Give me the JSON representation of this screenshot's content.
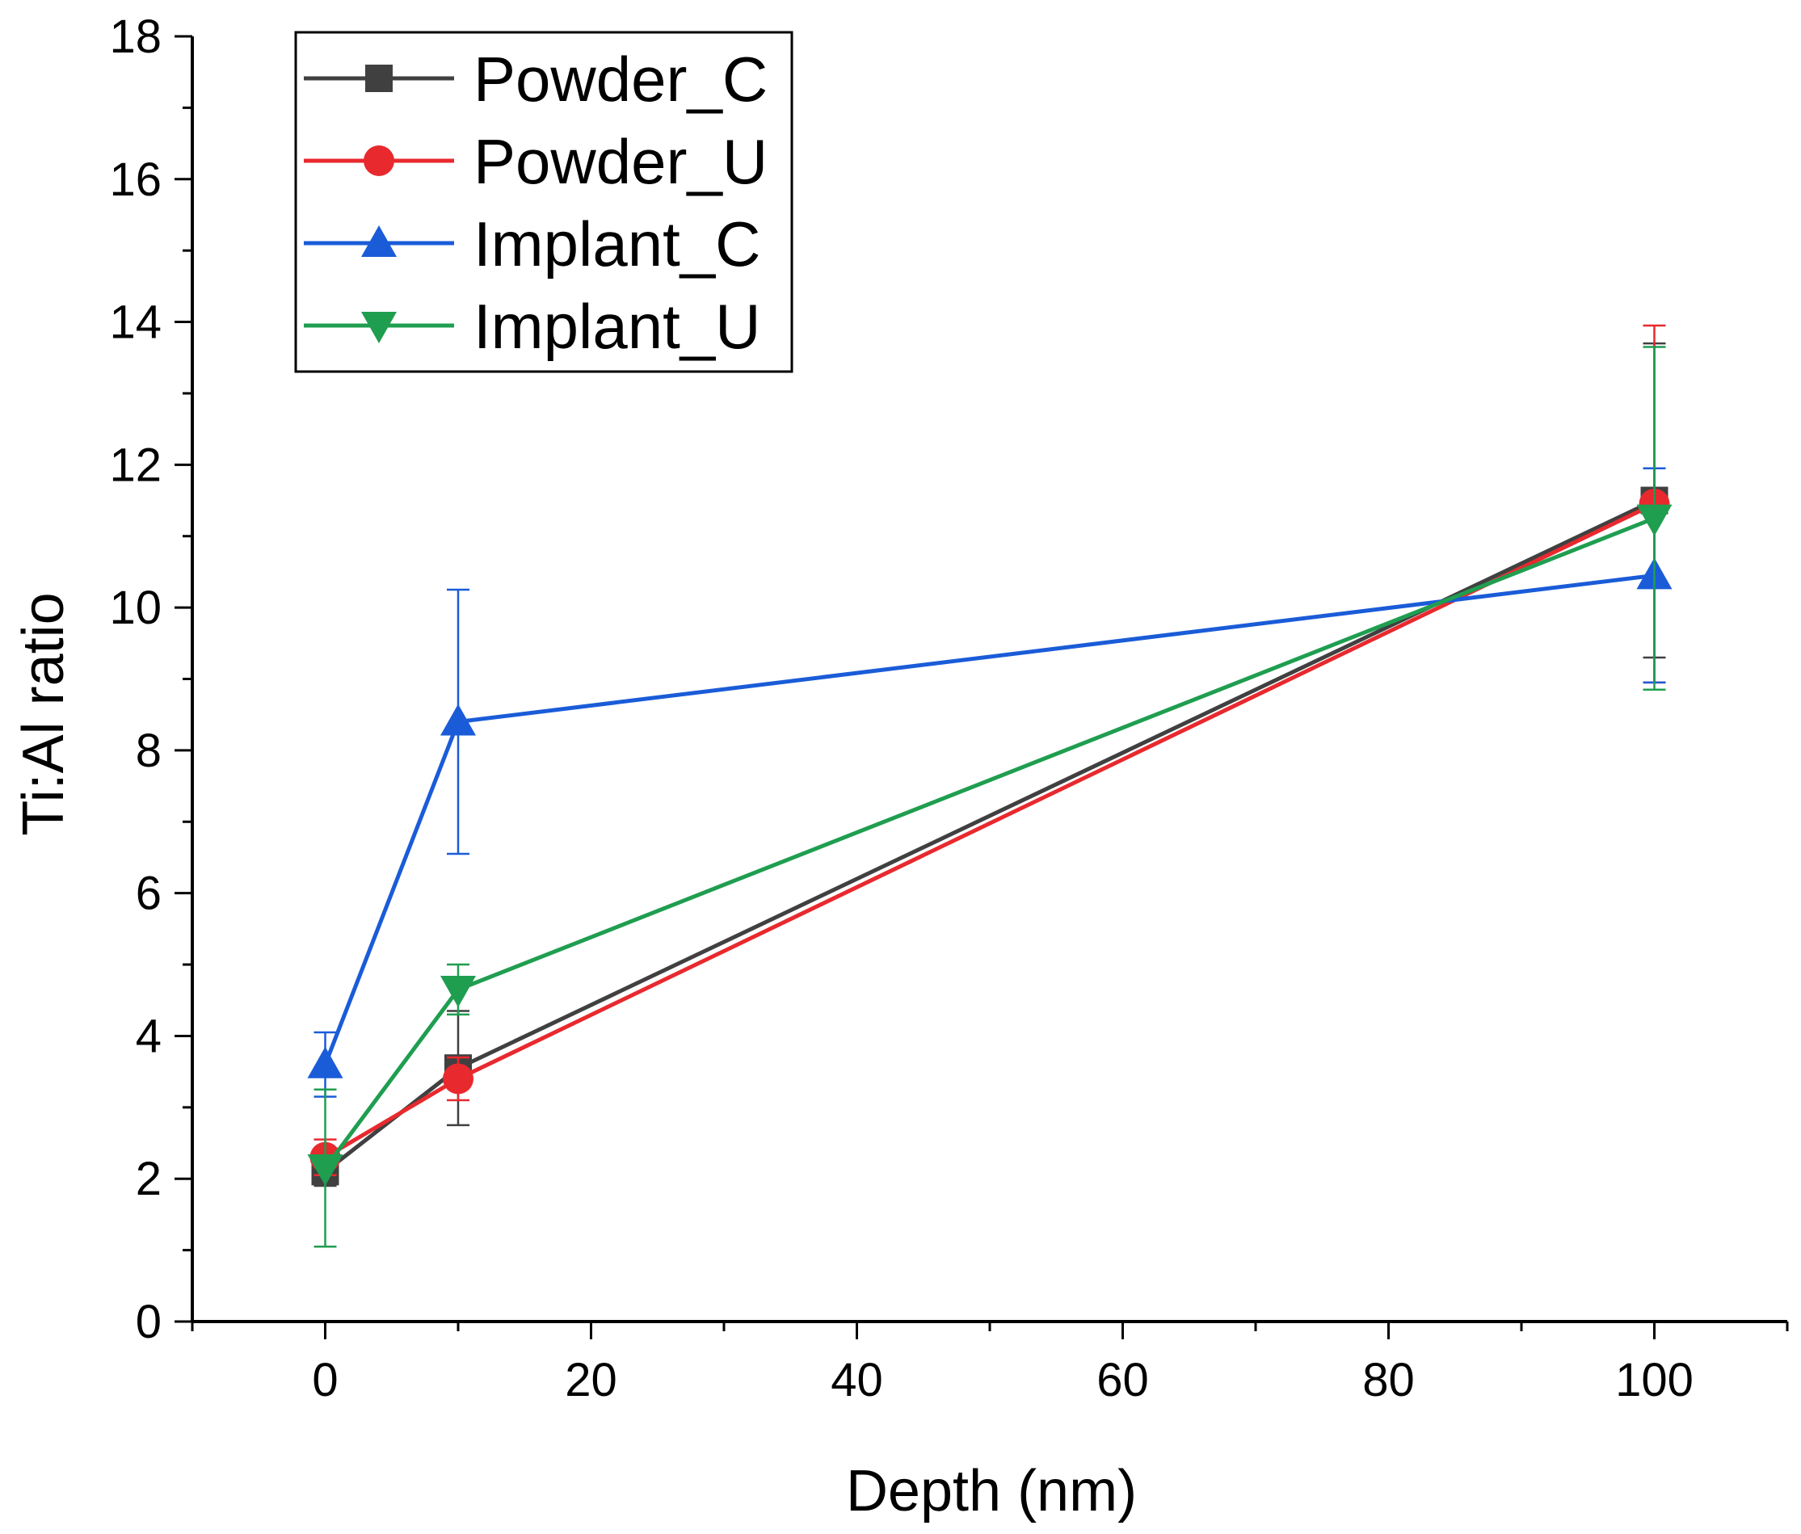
{
  "chart_data": {
    "type": "line",
    "title": "",
    "xlabel": "Depth (nm)",
    "ylabel": "Ti:Al ratio",
    "xlim": [
      -10,
      110
    ],
    "ylim": [
      0,
      18
    ],
    "x_ticks": [
      0,
      20,
      40,
      60,
      80,
      100
    ],
    "y_ticks": [
      0,
      2,
      4,
      6,
      8,
      10,
      12,
      14,
      16,
      18
    ],
    "grid": false,
    "legend_position": "top-left",
    "series": [
      {
        "name": "Powder_C",
        "color": "#404040",
        "marker": "square",
        "x": [
          0,
          10,
          100
        ],
        "y": [
          2.1,
          3.55,
          11.5
        ],
        "err": [
          0.2,
          0.8,
          2.2
        ]
      },
      {
        "name": "Powder_U",
        "color": "#e8292e",
        "marker": "circle",
        "x": [
          0,
          10,
          100
        ],
        "y": [
          2.3,
          3.4,
          11.45
        ],
        "err": [
          0.25,
          0.3,
          2.5
        ]
      },
      {
        "name": "Implant_C",
        "color": "#1a5cd8",
        "marker": "triangle-up",
        "x": [
          0,
          10,
          100
        ],
        "y": [
          3.6,
          8.4,
          10.45
        ],
        "err": [
          0.45,
          1.85,
          1.5
        ]
      },
      {
        "name": "Implant_U",
        "color": "#1f9e50",
        "marker": "triangle-down",
        "x": [
          0,
          10,
          100
        ],
        "y": [
          2.15,
          4.65,
          11.25
        ],
        "err": [
          1.1,
          0.35,
          2.4
        ]
      }
    ]
  }
}
